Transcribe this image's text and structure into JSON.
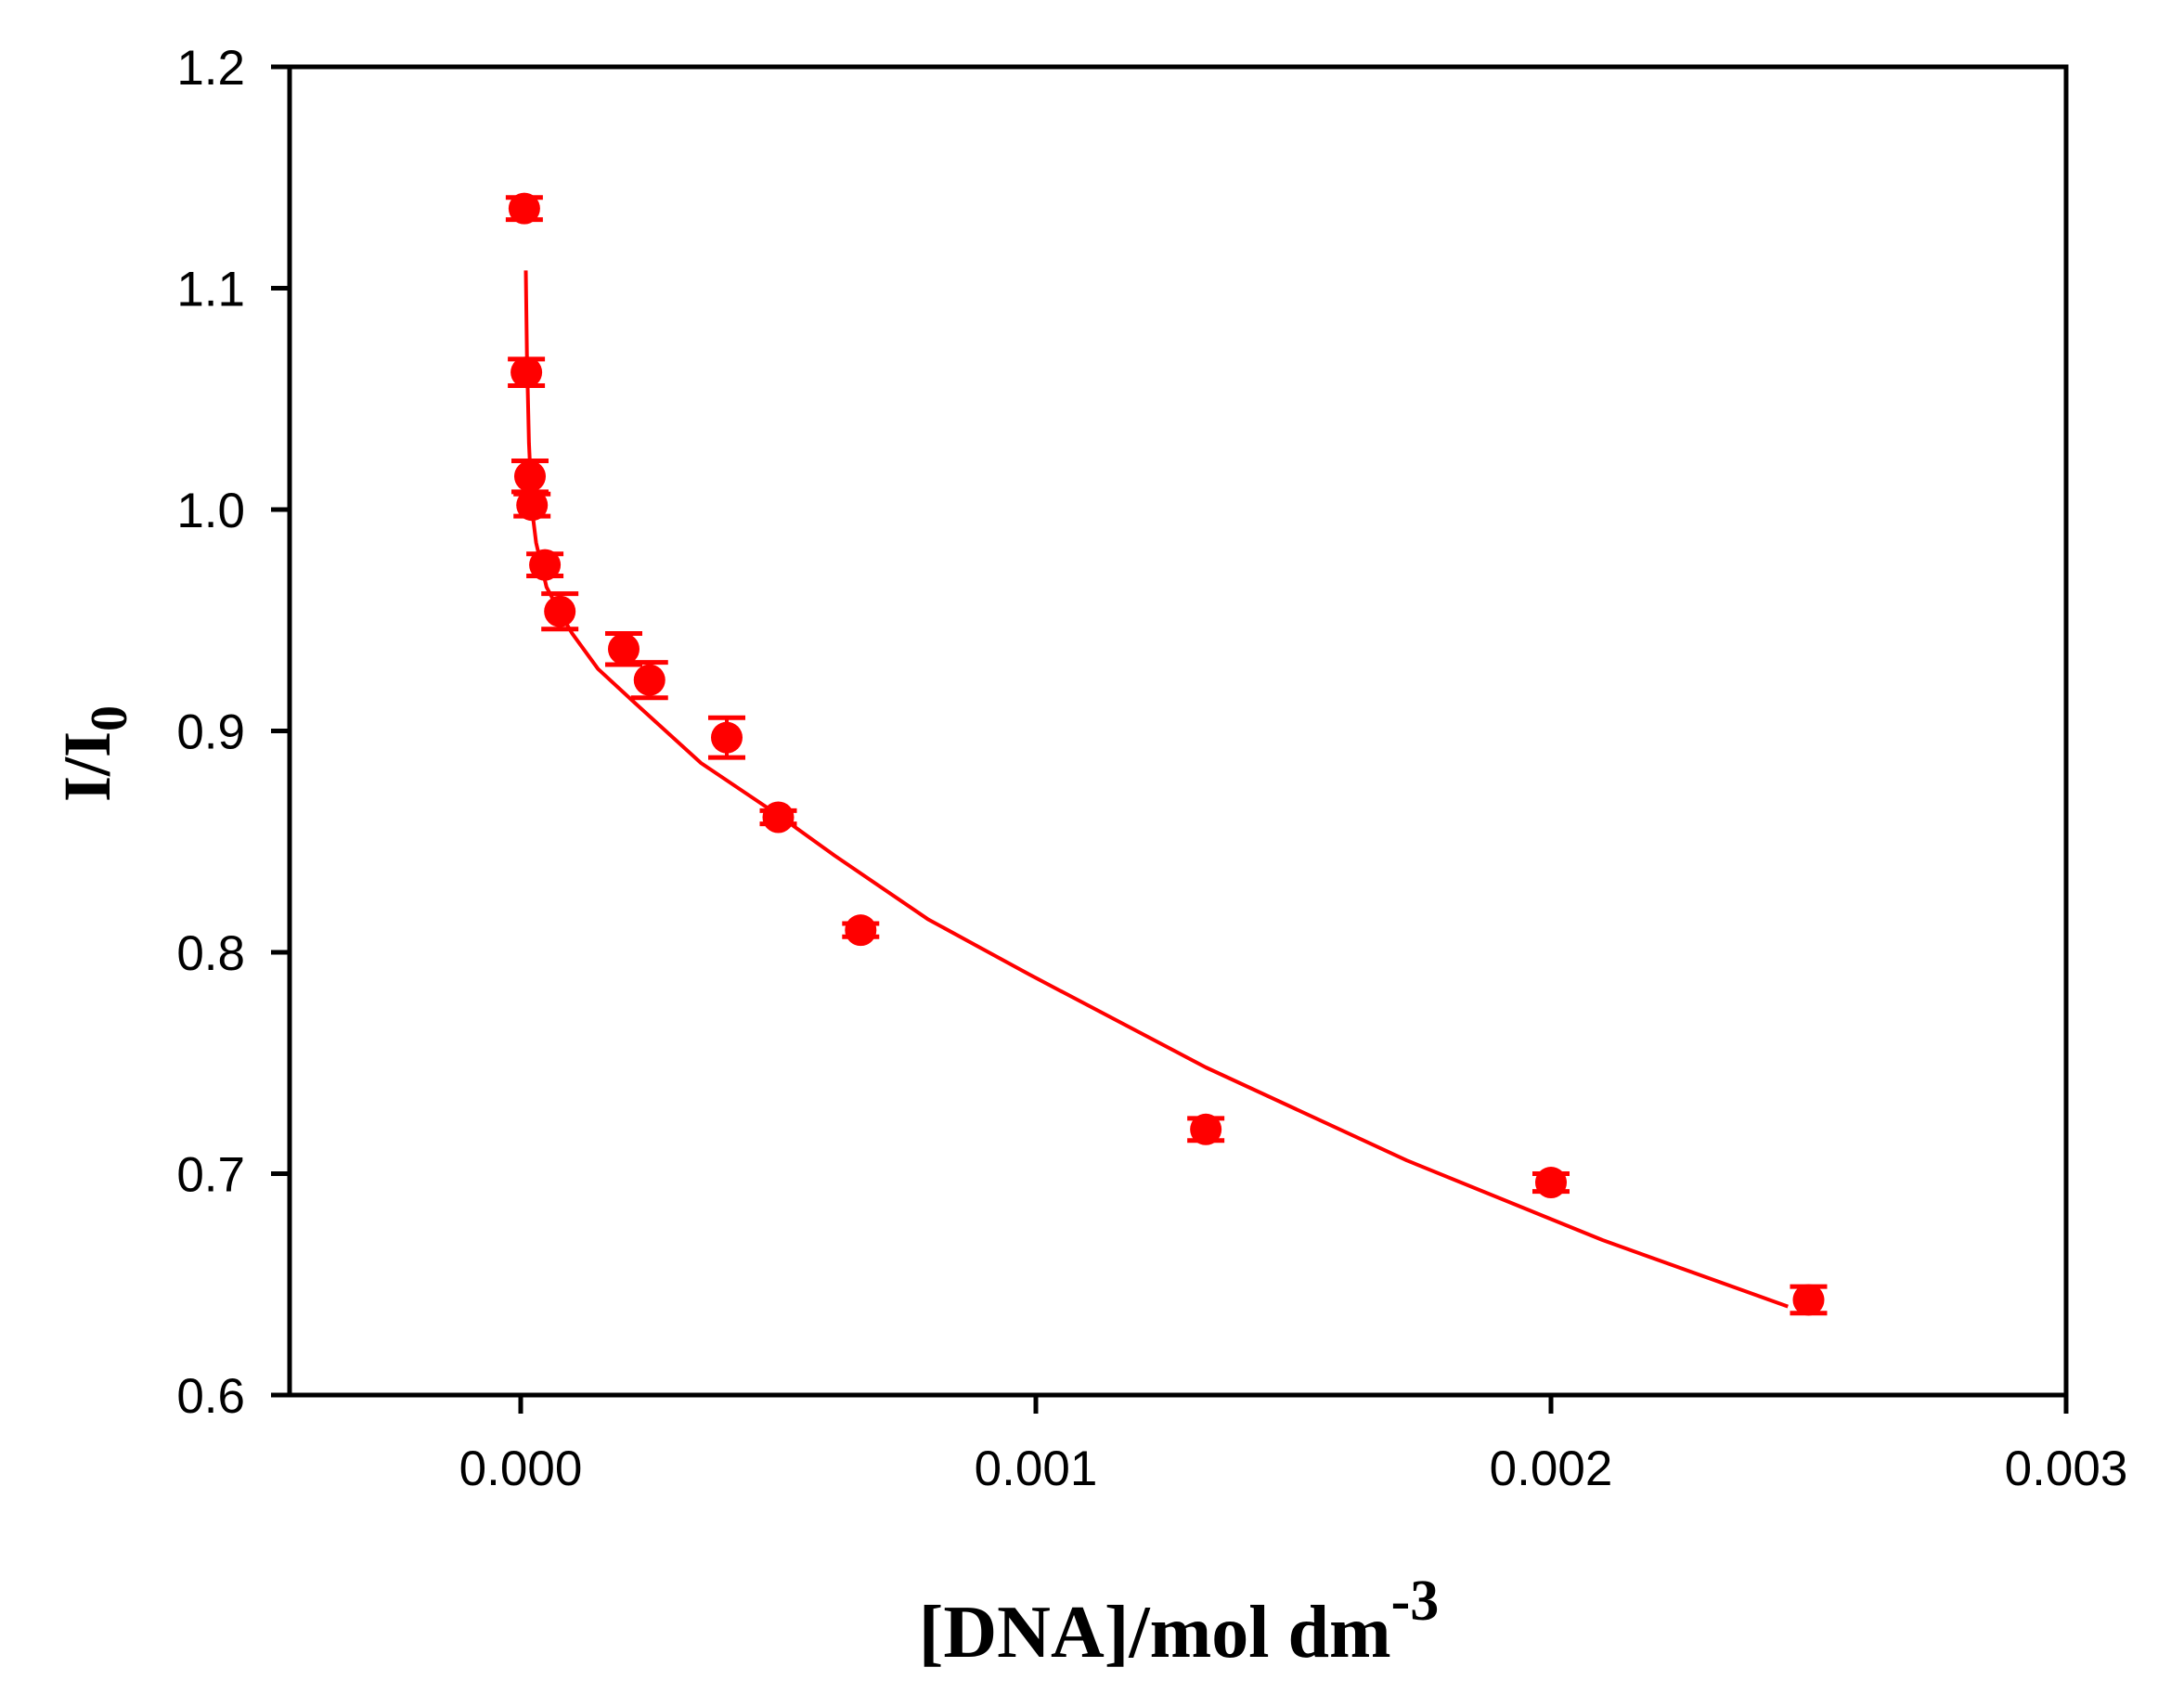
{
  "chart_data": {
    "type": "scatter",
    "title": "",
    "xlabel": "[DNA]/mol dm",
    "xlabel_superscript": "-3",
    "ylabel": "I/I",
    "ylabel_subscript": "0",
    "xlim": [
      -0.00045,
      0.003
    ],
    "ylim": [
      0.6,
      1.2
    ],
    "x_ticks": [
      0.0,
      0.001,
      0.002,
      0.003
    ],
    "x_tick_labels": [
      "0.000",
      "0.001",
      "0.002",
      "0.003"
    ],
    "y_ticks": [
      0.6,
      0.7,
      0.8,
      0.9,
      1.0,
      1.1,
      1.2
    ],
    "y_tick_labels": [
      "0.6",
      "0.7",
      "0.8",
      "0.9",
      "1.0",
      "1.1",
      "1.2"
    ],
    "grid": false,
    "legend": null,
    "series": [
      {
        "name": "measured",
        "style": "points-with-error-bars",
        "color": "#ff0000",
        "x": [
          7e-06,
          1.1e-05,
          1.8e-05,
          2.2e-05,
          4.7e-05,
          7.6e-05,
          0.0002,
          0.00025,
          0.0004,
          0.0005,
          0.00066,
          0.00133,
          0.002,
          0.0025
        ],
        "y": [
          1.136,
          1.062,
          1.015,
          1.002,
          0.975,
          0.954,
          0.937,
          0.923,
          0.897,
          0.861,
          0.81,
          0.72,
          0.696,
          0.643
        ],
        "y_err": [
          0.005,
          0.006,
          0.007,
          0.005,
          0.005,
          0.008,
          0.007,
          0.008,
          0.009,
          0.003,
          0.003,
          0.005,
          0.004,
          0.006
        ]
      },
      {
        "name": "fit",
        "style": "line",
        "color": "#ff0000",
        "x": [
          1e-05,
          1.2e-05,
          1.6e-05,
          2.2e-05,
          3e-05,
          5e-05,
          8e-05,
          0.0001,
          0.00015,
          0.00022,
          0.00035,
          0.0005,
          0.00061,
          0.00079,
          0.000987,
          0.00133,
          0.00172,
          0.0021,
          0.00246
        ],
        "y": [
          1.108,
          1.07,
          1.03,
          1.0,
          0.985,
          0.965,
          0.952,
          0.944,
          0.928,
          0.913,
          0.8855,
          0.862,
          0.8436,
          0.815,
          0.79,
          0.748,
          0.706,
          0.67,
          0.64
        ]
      }
    ]
  },
  "axes": {
    "x_title": "[DNA]/mol dm",
    "x_title_sup": "-3",
    "y_title": "I/I",
    "y_title_sub": "0"
  }
}
